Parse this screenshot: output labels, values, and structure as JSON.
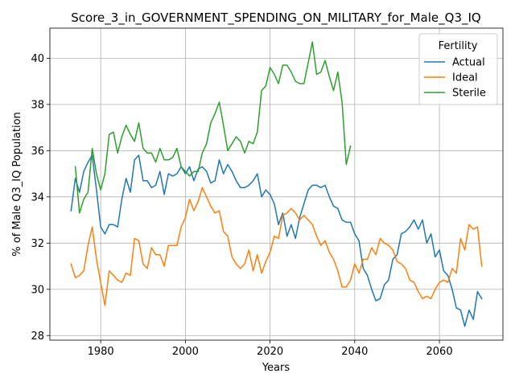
{
  "chart_data": {
    "type": "line",
    "title": "Score_3_in_GOVERNMENT_SPENDING_ON_MILITARY_for_Male_Q3_IQ",
    "xlabel": "Years",
    "ylabel": "% of Male Q3_IQ Population",
    "xlim": [
      1968,
      2075
    ],
    "ylim": [
      27.8,
      41.3
    ],
    "xticks": [
      1980,
      2000,
      2020,
      2040,
      2060
    ],
    "yticks": [
      28,
      30,
      32,
      34,
      36,
      38,
      40
    ],
    "grid": true,
    "legend": {
      "title": "Fertility",
      "placement": "top-right"
    },
    "series": [
      {
        "name": "Actual",
        "color": "#1f77b4",
        "x": [
          1973,
          1974,
          1975,
          1976,
          1977,
          1978,
          1979,
          1980,
          1981,
          1982,
          1983,
          1984,
          1985,
          1986,
          1987,
          1988,
          1989,
          1990,
          1991,
          1992,
          1993,
          1994,
          1995,
          1996,
          1997,
          1998,
          1999,
          2000,
          2001,
          2002,
          2003,
          2004,
          2005,
          2006,
          2007,
          2008,
          2009,
          2010,
          2011,
          2012,
          2013,
          2014,
          2015,
          2016,
          2017,
          2018,
          2019,
          2020,
          2021,
          2022,
          2023,
          2024,
          2025,
          2026,
          2027,
          2028,
          2029,
          2030,
          2031,
          2032,
          2033,
          2034,
          2035,
          2036,
          2037,
          2038,
          2039,
          2040,
          2041,
          2042,
          2043,
          2044,
          2045,
          2046,
          2047,
          2048,
          2049,
          2050,
          2051,
          2052,
          2053,
          2054,
          2055,
          2056,
          2057,
          2058,
          2059,
          2060,
          2061,
          2062,
          2063,
          2064,
          2065,
          2066,
          2067,
          2068,
          2069,
          2070
        ],
        "values": [
          33.4,
          34.8,
          34.2,
          35.1,
          35.5,
          35.8,
          34.3,
          32.7,
          32.4,
          32.8,
          32.8,
          32.7,
          33.9,
          34.8,
          34.2,
          35.6,
          35.8,
          34.7,
          34.7,
          34.4,
          34.5,
          35.1,
          34.1,
          35.0,
          34.9,
          35.0,
          35.3,
          35.0,
          35.3,
          34.7,
          35.2,
          35.3,
          35.1,
          34.6,
          34.7,
          35.6,
          35.0,
          35.4,
          35.1,
          34.7,
          34.4,
          34.4,
          34.5,
          34.7,
          35.0,
          34.0,
          34.3,
          34.1,
          33.7,
          32.8,
          33.3,
          32.3,
          32.8,
          32.2,
          33.1,
          33.7,
          34.3,
          34.5,
          34.5,
          34.4,
          34.5,
          34.0,
          33.6,
          33.5,
          33.0,
          32.9,
          32.9,
          32.4,
          32.1,
          30.9,
          30.6,
          30.0,
          29.5,
          29.6,
          30.2,
          30.4,
          31.3,
          31.5,
          32.4,
          32.5,
          32.7,
          33.0,
          32.6,
          33.0,
          32.0,
          32.4,
          31.4,
          31.7,
          30.8,
          30.6,
          30.0,
          29.2,
          29.1,
          28.4,
          29.1,
          28.7,
          29.9,
          29.6
        ]
      },
      {
        "name": "Ideal",
        "color": "#ff7f0e",
        "x": [
          1973,
          1974,
          1975,
          1976,
          1977,
          1978,
          1979,
          1980,
          1981,
          1982,
          1983,
          1984,
          1985,
          1986,
          1987,
          1988,
          1989,
          1990,
          1991,
          1992,
          1993,
          1994,
          1995,
          1996,
          1997,
          1998,
          1999,
          2000,
          2001,
          2002,
          2003,
          2004,
          2005,
          2006,
          2007,
          2008,
          2009,
          2010,
          2011,
          2012,
          2013,
          2014,
          2015,
          2016,
          2017,
          2018,
          2019,
          2020,
          2021,
          2022,
          2023,
          2024,
          2025,
          2026,
          2027,
          2028,
          2029,
          2030,
          2031,
          2032,
          2033,
          2034,
          2035,
          2036,
          2037,
          2038,
          2039,
          2040,
          2041,
          2042,
          2043,
          2044,
          2045,
          2046,
          2047,
          2048,
          2049,
          2050,
          2051,
          2052,
          2053,
          2054,
          2055,
          2056,
          2057,
          2058,
          2059,
          2060,
          2061,
          2062,
          2063,
          2064,
          2065,
          2066,
          2067,
          2068,
          2069,
          2070
        ],
        "values": [
          31.1,
          30.5,
          30.6,
          30.8,
          31.9,
          32.7,
          31.3,
          30.3,
          29.3,
          30.8,
          30.6,
          30.4,
          30.3,
          30.7,
          30.6,
          32.2,
          32.1,
          31.1,
          30.9,
          31.8,
          31.5,
          31.5,
          31.0,
          31.9,
          31.9,
          31.9,
          32.7,
          33.1,
          33.9,
          33.4,
          33.8,
          34.4,
          34.0,
          33.6,
          33.3,
          33.4,
          32.5,
          32.3,
          31.4,
          31.1,
          30.9,
          31.1,
          31.7,
          30.8,
          31.5,
          30.7,
          31.2,
          31.6,
          32.3,
          32.2,
          33.2,
          33.3,
          33.5,
          33.3,
          33.0,
          33.2,
          33.0,
          32.8,
          32.3,
          31.9,
          32.1,
          31.6,
          31.3,
          30.8,
          30.1,
          30.1,
          30.4,
          31.1,
          30.7,
          31.3,
          31.3,
          31.8,
          31.5,
          32.2,
          32.0,
          31.9,
          31.7,
          31.2,
          31.1,
          30.9,
          30.4,
          30.3,
          29.9,
          29.6,
          29.7,
          29.6,
          30.0,
          30.3,
          30.4,
          30.3,
          30.9,
          30.7,
          32.2,
          31.7,
          32.8,
          32.6,
          32.7,
          31.0
        ]
      },
      {
        "name": "Sterile",
        "color": "#2ca02c",
        "x": [
          1974,
          1975,
          1976,
          1977,
          1978,
          1979,
          1980,
          1981,
          1982,
          1983,
          1984,
          1985,
          1986,
          1987,
          1988,
          1989,
          1990,
          1991,
          1992,
          1993,
          1994,
          1995,
          1996,
          1997,
          1998,
          1999,
          2000,
          2001,
          2002,
          2003,
          2004,
          2005,
          2006,
          2007,
          2008,
          2009,
          2010,
          2011,
          2012,
          2013,
          2014,
          2015,
          2016,
          2017,
          2018,
          2019,
          2020,
          2021,
          2022,
          2023,
          2024,
          2025,
          2026,
          2027,
          2028,
          2029,
          2030,
          2031,
          2032,
          2033,
          2034,
          2035,
          2036,
          2037,
          2038,
          2039
        ],
        "values": [
          35.3,
          33.3,
          33.9,
          34.2,
          36.1,
          35.0,
          34.3,
          35.0,
          36.7,
          36.8,
          35.9,
          36.6,
          37.1,
          36.7,
          36.4,
          37.2,
          36.1,
          35.9,
          35.9,
          35.5,
          36.1,
          35.6,
          35.6,
          35.7,
          36.1,
          35.3,
          35.1,
          34.9,
          35.1,
          35.1,
          35.9,
          36.3,
          37.2,
          37.6,
          38.1,
          37.1,
          36.0,
          36.3,
          36.6,
          36.4,
          35.9,
          36.4,
          36.3,
          36.8,
          38.6,
          38.8,
          39.6,
          39.3,
          38.9,
          39.7,
          39.7,
          39.4,
          39.0,
          38.9,
          38.9,
          39.8,
          40.7,
          39.3,
          39.4,
          39.9,
          39.2,
          38.6,
          39.4,
          38.1,
          35.4,
          36.2
        ]
      }
    ]
  }
}
